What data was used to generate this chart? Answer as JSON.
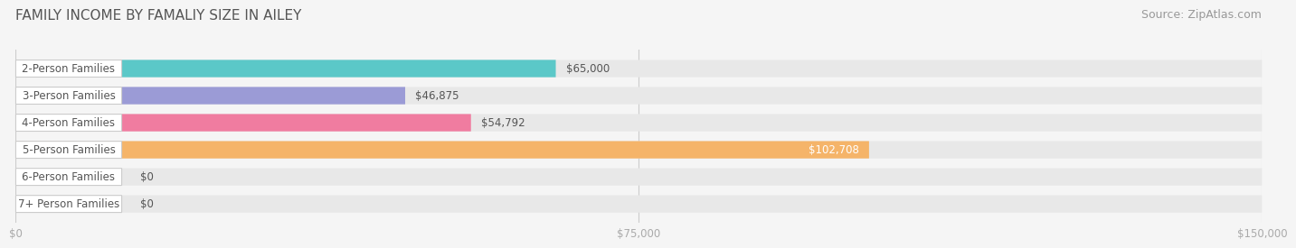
{
  "title": "FAMILY INCOME BY FAMALIY SIZE IN AILEY",
  "source": "Source: ZipAtlas.com",
  "categories": [
    "2-Person Families",
    "3-Person Families",
    "4-Person Families",
    "5-Person Families",
    "6-Person Families",
    "7+ Person Families"
  ],
  "values": [
    65000,
    46875,
    54792,
    102708,
    0,
    0
  ],
  "bar_colors": [
    "#5bc8c8",
    "#9b9bd6",
    "#f07ca0",
    "#f5b469",
    "#f0a0a8",
    "#a8c8e8"
  ],
  "xmax": 150000,
  "xticks": [
    0,
    75000,
    150000
  ],
  "xtick_labels": [
    "$0",
    "$75,000",
    "$150,000"
  ],
  "value_labels": [
    "$65,000",
    "$46,875",
    "$54,792",
    "$102,708",
    "$0",
    "$0"
  ],
  "background_color": "#f5f5f5",
  "bar_background": "#e8e8e8",
  "title_fontsize": 11,
  "source_fontsize": 9,
  "label_fontsize": 8.5,
  "value_fontsize": 8.5
}
